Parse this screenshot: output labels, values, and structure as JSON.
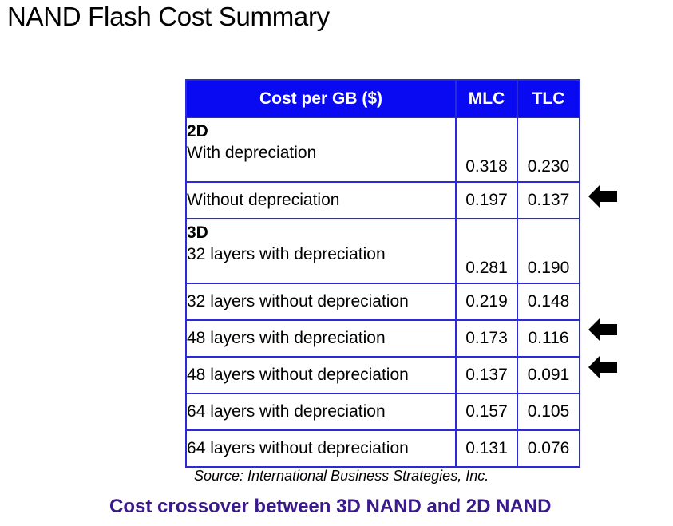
{
  "title": "NAND Flash Cost Summary",
  "table": {
    "headers": [
      "Cost per GB ($)",
      "MLC",
      "TLC"
    ],
    "rows": [
      {
        "group": "2D",
        "label": "With depreciation",
        "mlc": "0.318",
        "tlc": "0.230",
        "arrow": false
      },
      {
        "label": "Without depreciation",
        "mlc": "0.197",
        "tlc": "0.137",
        "arrow": true
      },
      {
        "group": "3D",
        "label": "32 layers with depreciation",
        "mlc": "0.281",
        "tlc": "0.190",
        "arrow": false
      },
      {
        "label": "32 layers without depreciation",
        "mlc": "0.219",
        "tlc": "0.148",
        "arrow": false
      },
      {
        "label": "48 layers with depreciation",
        "mlc": "0.173",
        "tlc": "0.116",
        "arrow": true
      },
      {
        "label": "48 layers without depreciation",
        "mlc": "0.137",
        "tlc": "0.091",
        "arrow": true
      },
      {
        "label": "64 layers with depreciation",
        "mlc": "0.157",
        "tlc": "0.105",
        "arrow": false
      },
      {
        "label": "64 layers without depreciation",
        "mlc": "0.131",
        "tlc": "0.076",
        "arrow": false
      }
    ]
  },
  "source": "Source: International Business Strategies, Inc.",
  "caption": "Cost crossover between 3D NAND and 2D NAND",
  "colors": {
    "header_bg": "#0a0af2",
    "border": "#2a2ad8",
    "caption": "#3a1a8a",
    "arrow": "#000000"
  },
  "icons": {
    "arrow": "left-arrow-icon"
  }
}
